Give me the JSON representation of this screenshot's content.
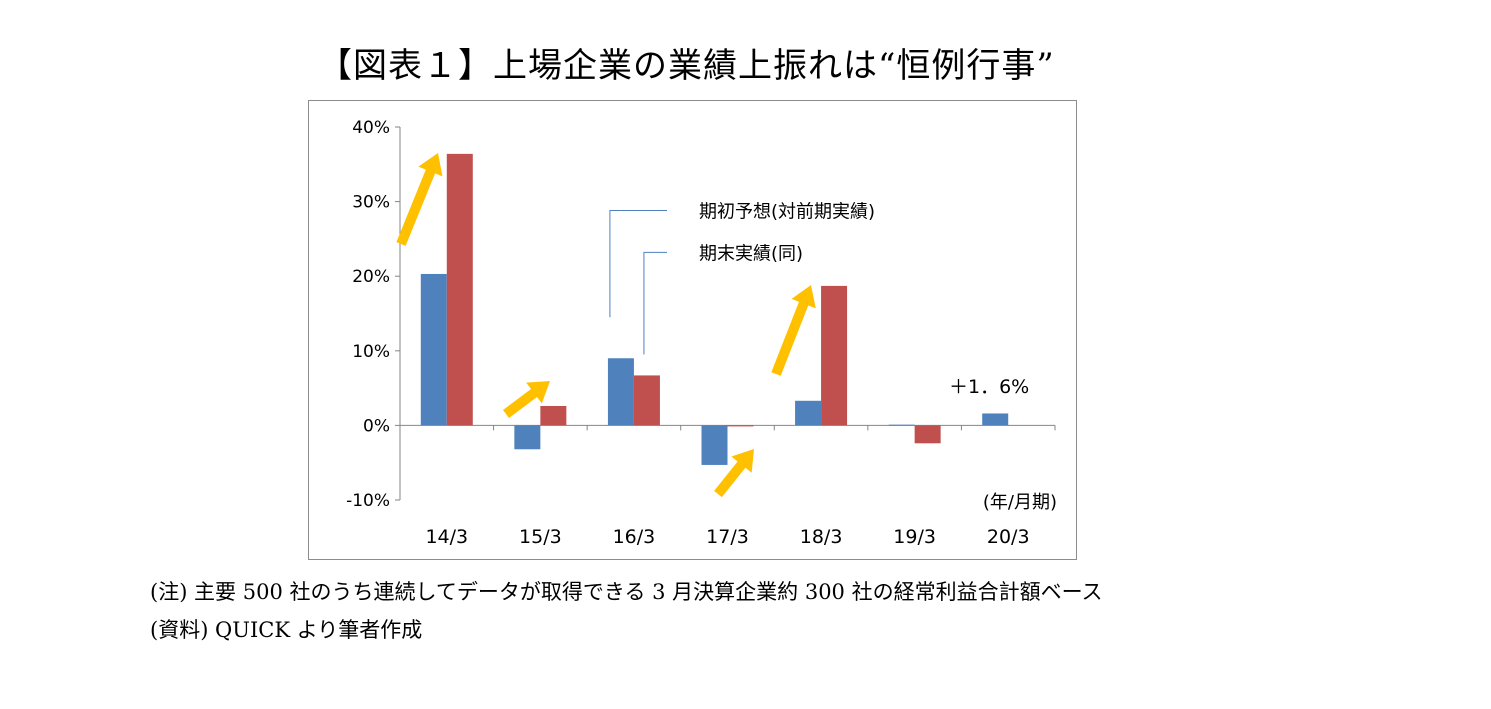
{
  "title": "【図表１】上場企業の業績上振れは“恒例行事”",
  "notes": {
    "note1": "(注) 主要 500 社のうち連続してデータが取得できる 3 月決算企業約 300 社の経常利益合計額ベース",
    "note2": "(資料) QUICK より筆者作成"
  },
  "chart_data": {
    "type": "bar",
    "categories": [
      "14/3",
      "15/3",
      "16/3",
      "17/3",
      "18/3",
      "19/3",
      "20/3"
    ],
    "series": [
      {
        "name": "期初予想(対前期実績)",
        "color": "#4f81bd",
        "values": [
          20.3,
          -3.2,
          9.0,
          -5.3,
          3.3,
          0.1,
          1.6
        ]
      },
      {
        "name": "期末実績(同)",
        "color": "#c0504d",
        "values": [
          36.4,
          2.6,
          6.7,
          -0.1,
          18.7,
          -2.4,
          null
        ]
      }
    ],
    "ylim": [
      -10,
      40
    ],
    "yticks": [
      "40%",
      "30%",
      "20%",
      "10%",
      "0%",
      "-10%"
    ],
    "xunit": "(年/月期)",
    "annotation": "＋1．6%",
    "arrow_color": "#ffc000"
  }
}
